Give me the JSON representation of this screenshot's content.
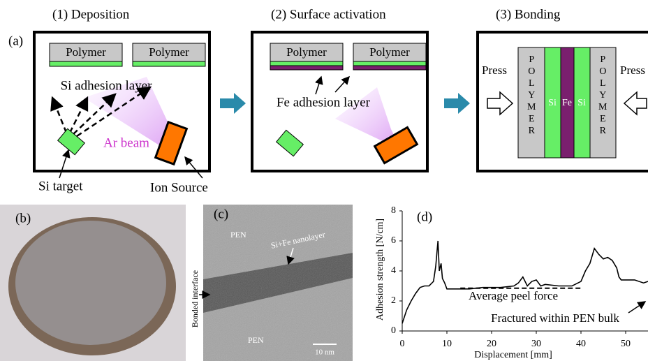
{
  "panel_a": {
    "label": "(a)",
    "deposition": {
      "title": "(1) Deposition",
      "polymer_labels": [
        "Polymer",
        "Polymer"
      ],
      "layer_label": "Si adhesion layer",
      "beam_label": "Ar beam",
      "target_label": "Si target",
      "source_label": "Ion Source"
    },
    "activation": {
      "title": "(2) Surface activation",
      "polymer_labels": [
        "Polymer",
        "Polymer"
      ],
      "layer_label": "Fe adhesion layer"
    },
    "bonding": {
      "title": "(3) Bonding",
      "press_labels": [
        "Press",
        "Press"
      ],
      "stack": [
        "POLYMER",
        "Si",
        "Fe",
        "Si",
        "POLYMER"
      ]
    }
  },
  "panel_b": {
    "label": "(b)"
  },
  "panel_c": {
    "label": "(c)",
    "top_label": "PEN",
    "layer_label": "Si+Fe nanolayer",
    "interface_label": "Bonded interface",
    "bottom_label": "PEN",
    "scale_label": "10 nm"
  },
  "chart_data": {
    "type": "line",
    "panel_label": "(d)",
    "x_label": "Displacement [mm]",
    "y_label": "Adhesion strength [N/cm]",
    "annotations": [
      "Average peel force",
      "Fractured within PEN bulk"
    ],
    "xlim": [
      0,
      55
    ],
    "ylim": [
      0,
      8
    ],
    "xticks": [
      0,
      10,
      20,
      30,
      40,
      50
    ],
    "yticks": [
      0,
      2,
      4,
      6,
      8
    ],
    "series": [
      {
        "color": "#000000",
        "style": "solid",
        "x": [
          0,
          1,
          2,
          3,
          4,
          5,
          6,
          7,
          7.5,
          8,
          8.3,
          8.7,
          9,
          9.5,
          10,
          12,
          15,
          18,
          20,
          22,
          25,
          26,
          27,
          28,
          29,
          30,
          31,
          32,
          35,
          38,
          40,
          41,
          42,
          43,
          44,
          45,
          46,
          47,
          48,
          48.5,
          49,
          50,
          52,
          54,
          55
        ],
        "values": [
          0.5,
          1.4,
          2.0,
          2.5,
          2.9,
          3.0,
          3.0,
          3.3,
          4.3,
          6.0,
          4.0,
          4.5,
          3.5,
          3.2,
          2.8,
          2.8,
          2.8,
          2.9,
          2.9,
          2.9,
          3.0,
          3.2,
          3.6,
          3.0,
          3.3,
          3.4,
          3.0,
          3.1,
          3.0,
          3.0,
          3.3,
          4.0,
          4.5,
          5.5,
          5.1,
          4.8,
          4.9,
          4.7,
          4.2,
          3.6,
          3.4,
          3.4,
          3.4,
          3.2,
          3.3
        ]
      },
      {
        "color": "#000000",
        "style": "dashed",
        "x": [
          13,
          40
        ],
        "values": [
          2.85,
          2.85
        ]
      }
    ]
  }
}
